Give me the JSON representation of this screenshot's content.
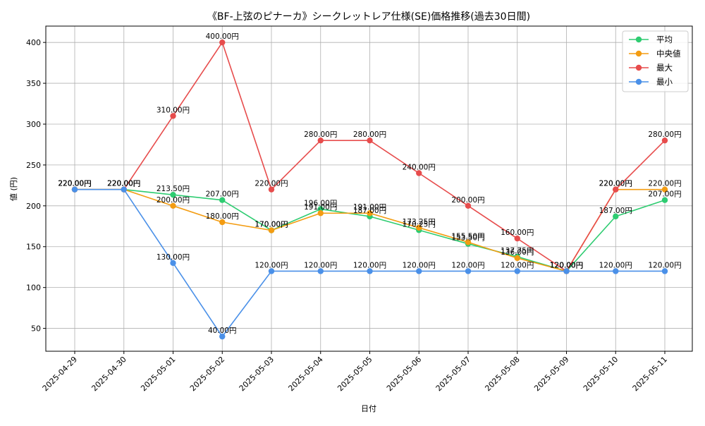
{
  "chart_data": {
    "type": "line",
    "title": "《BF-上弦のピナーカ》シークレットレア仕様(SE)価格推移(過去30日間)",
    "xlabel": "日付",
    "ylabel": "値 (円)",
    "categories": [
      "2025-04-29",
      "2025-04-30",
      "2025-05-01",
      "2025-05-02",
      "2025-05-03",
      "2025-05-04",
      "2025-05-05",
      "2025-05-06",
      "2025-05-07",
      "2025-05-08",
      "2025-05-09",
      "2025-05-10",
      "2025-05-11"
    ],
    "ylim": [
      22,
      420
    ],
    "yticks": [
      50,
      100,
      150,
      200,
      250,
      300,
      350,
      400
    ],
    "grid": true,
    "legend_position": "top-right",
    "label_suffix": "円",
    "series": [
      {
        "name": "平均",
        "color": "#2ecc71",
        "values": [
          220,
          220,
          213.5,
          207,
          170,
          196,
          187,
          170.25,
          153.5,
          137.75,
          120,
          187,
          207
        ]
      },
      {
        "name": "中央値",
        "color": "#f39c12",
        "values": [
          220,
          220,
          200,
          180,
          170,
          191,
          191,
          173.25,
          155.5,
          136,
          120,
          220,
          220
        ]
      },
      {
        "name": "最大",
        "color": "#e74c4c",
        "values": [
          220,
          220,
          310,
          400,
          220,
          280,
          280,
          240,
          200,
          160,
          120,
          220,
          280
        ]
      },
      {
        "name": "最小",
        "color": "#4a90e8",
        "values": [
          220,
          220,
          130,
          40,
          120,
          120,
          120,
          120,
          120,
          120,
          120,
          120,
          120
        ]
      }
    ]
  }
}
